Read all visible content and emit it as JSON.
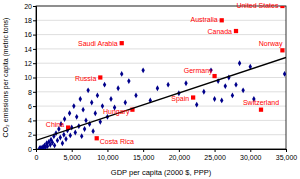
{
  "chart_data": {
    "type": "scatter",
    "x_label": "GDP per capita (2000 $, PPP)",
    "y_label": "CO₂ emissions per capita (metric tons)",
    "xlim": [
      0,
      35000
    ],
    "xticks": [
      0,
      {
        "value": 5000,
        "label": "5,000"
      },
      {
        "value": 10000,
        "label": "10,000"
      },
      {
        "value": 15000,
        "label": "15,000"
      },
      {
        "value": 20000,
        "label": "20,000"
      },
      {
        "value": 25000,
        "label": "25,000"
      },
      {
        "value": 30000,
        "label": "30,000"
      },
      {
        "value": 35000,
        "label": "35,000"
      }
    ],
    "ylim": [
      0,
      20
    ],
    "yticks": [
      0,
      2,
      4,
      6,
      8,
      10,
      12,
      14,
      16,
      18,
      20
    ],
    "grid": true,
    "series": [
      {
        "type": "scatter",
        "color": "#00008b",
        "marker": "diamond",
        "x": [
          500,
          700,
          900,
          1000,
          1200,
          1300,
          1500,
          1600,
          1800,
          2000,
          2100,
          2300,
          2500,
          2600,
          2800,
          3000,
          3200,
          3400,
          3500,
          3700,
          3900,
          4000,
          4200,
          4400,
          4700,
          4800,
          5000,
          5300,
          5500,
          5700,
          6000,
          6200,
          6400,
          6600,
          6800,
          7000,
          7300,
          7500,
          7800,
          8000,
          8300,
          8600,
          9000,
          9300,
          9600,
          10000,
          10500,
          11000,
          11500,
          12000,
          12500,
          13000,
          14000,
          15000,
          16000,
          17000,
          18500,
          20000,
          21000,
          22500,
          23500,
          24500,
          25000,
          25500,
          26000,
          26500,
          27000,
          27500,
          28000,
          28500,
          29000,
          30000,
          30500,
          34800
        ],
        "values": [
          0.1,
          0.2,
          0.1,
          0.3,
          0.5,
          0.2,
          0.8,
          0.4,
          1.0,
          0.6,
          1.3,
          0.9,
          1.8,
          0.5,
          2.2,
          1.2,
          2.8,
          1.6,
          3.5,
          0.8,
          2.0,
          4.2,
          1.4,
          2.6,
          5.0,
          1.9,
          3.0,
          6.0,
          2.3,
          4.5,
          3.2,
          7.0,
          1.8,
          5.5,
          2.8,
          4.0,
          8.2,
          3.5,
          6.5,
          2.5,
          5.0,
          7.5,
          3.8,
          6.0,
          9.0,
          4.5,
          7.0,
          5.8,
          8.5,
          10.5,
          6.5,
          9.5,
          7.5,
          11.0,
          6.8,
          8.5,
          9.0,
          7.8,
          9.2,
          6.2,
          8.0,
          11.0,
          7.0,
          9.5,
          6.8,
          8.8,
          10.0,
          7.5,
          9.0,
          12.0,
          8.2,
          11.5,
          7.0,
          10.5
        ]
      },
      {
        "type": "scatter",
        "color": "#ff0000",
        "marker": "square",
        "x": [
          34500,
          26000,
          28000,
          12000,
          34500,
          9000,
          25000,
          22000,
          13500,
          4500,
          8500,
          31500
        ],
        "values": [
          20,
          18,
          16.5,
          14.8,
          13.8,
          10,
          10.2,
          7.2,
          5.5,
          3,
          1.5,
          5.5
        ],
        "labels": [
          "United States",
          "Australia",
          "Canada",
          "Saudi Arabia",
          "Norway",
          "Russia",
          "Germany",
          "Spain",
          "Hungary",
          "China",
          "Costa Rica",
          "Switzerland"
        ]
      },
      {
        "type": "line",
        "color": "#000000",
        "line_style": "solid",
        "x": [
          0,
          35000
        ],
        "values": [
          1.2,
          12.8
        ]
      }
    ]
  }
}
